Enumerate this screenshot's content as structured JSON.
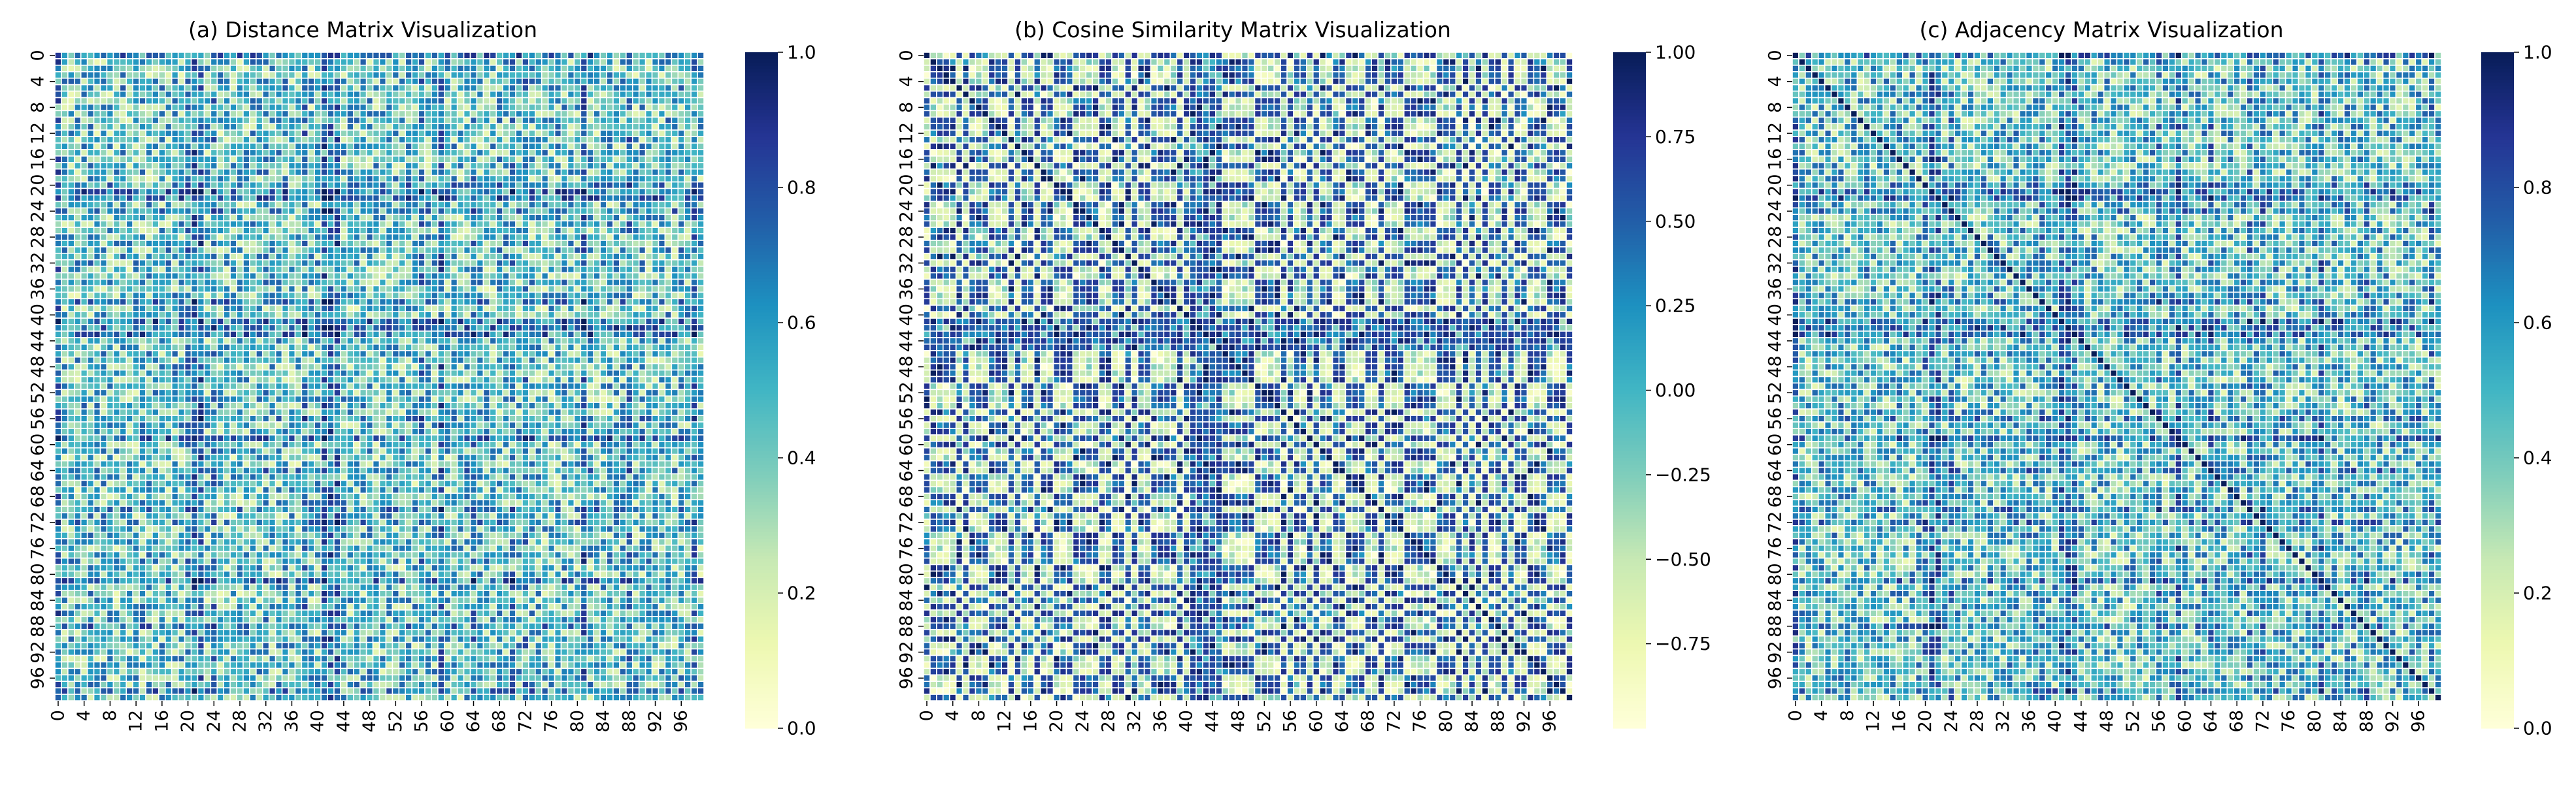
{
  "figure": {
    "background": "#ffffff",
    "gridline_color": "#ffffff",
    "colormap_name": "YlGnBu",
    "colormap": [
      "#ffffd9",
      "#edf8b1",
      "#c7e9b4",
      "#7fcdbb",
      "#41b6c4",
      "#1d91c0",
      "#225ea8",
      "#253494",
      "#081d58"
    ],
    "matrix_size": 100
  },
  "chart_data": [
    {
      "type": "heatmap",
      "title": "(a) Distance Matrix Visualization",
      "xlabel": "",
      "ylabel": "",
      "x_tick_labels": [
        "0",
        "4",
        "8",
        "12",
        "16",
        "20",
        "24",
        "28",
        "32",
        "36",
        "40",
        "44",
        "48",
        "52",
        "56",
        "60",
        "64",
        "68",
        "72",
        "76",
        "80",
        "84",
        "88",
        "92",
        "96"
      ],
      "y_tick_labels": [
        "0",
        "4",
        "8",
        "12",
        "16",
        "20",
        "24",
        "28",
        "32",
        "36",
        "40",
        "44",
        "48",
        "52",
        "56",
        "60",
        "64",
        "68",
        "72",
        "76",
        "80",
        "84",
        "88",
        "92",
        "96"
      ],
      "value_range": [
        0.0,
        1.0
      ],
      "colorbar_ticks": [
        "0.0",
        "0.2",
        "0.4",
        "0.6",
        "0.8",
        "1.0"
      ],
      "colorbar_tick_values": [
        0.0,
        0.2,
        0.4,
        0.6,
        0.8,
        1.0
      ],
      "pattern": "distance",
      "seed": 11,
      "dark_rows": [
        0,
        21,
        22,
        41,
        42,
        43,
        59,
        81
      ],
      "mid_rows": [
        20,
        24,
        38,
        56,
        64,
        70,
        72,
        88,
        98
      ]
    },
    {
      "type": "heatmap",
      "title": "(b) Cosine Similarity Matrix Visualization",
      "xlabel": "",
      "ylabel": "",
      "x_tick_labels": [
        "0",
        "4",
        "8",
        "12",
        "16",
        "20",
        "24",
        "28",
        "32",
        "36",
        "40",
        "44",
        "48",
        "52",
        "56",
        "60",
        "64",
        "68",
        "72",
        "76",
        "80",
        "84",
        "88",
        "92",
        "96"
      ],
      "y_tick_labels": [
        "0",
        "4",
        "8",
        "12",
        "16",
        "20",
        "24",
        "28",
        "32",
        "36",
        "40",
        "44",
        "48",
        "52",
        "56",
        "60",
        "64",
        "68",
        "72",
        "76",
        "80",
        "84",
        "88",
        "92",
        "96"
      ],
      "value_range": [
        -1.0,
        1.0
      ],
      "colorbar_ticks": [
        "1.00",
        "0.75",
        "0.50",
        "0.25",
        "0.00",
        "−0.25",
        "−0.50",
        "−0.75"
      ],
      "colorbar_tick_values": [
        1.0,
        0.75,
        0.5,
        0.25,
        0.0,
        -0.25,
        -0.5,
        -0.75
      ],
      "pattern": "cosine",
      "seed": 29,
      "dark_rows": [],
      "mid_rows": []
    },
    {
      "type": "heatmap",
      "title": "(c) Adjacency Matrix Visualization",
      "xlabel": "",
      "ylabel": "",
      "x_tick_labels": [
        "0",
        "4",
        "8",
        "12",
        "16",
        "20",
        "24",
        "28",
        "32",
        "36",
        "40",
        "44",
        "48",
        "52",
        "56",
        "60",
        "64",
        "68",
        "72",
        "76",
        "80",
        "84",
        "88",
        "92",
        "96"
      ],
      "y_tick_labels": [
        "0",
        "4",
        "8",
        "12",
        "16",
        "20",
        "24",
        "28",
        "32",
        "36",
        "40",
        "44",
        "48",
        "52",
        "56",
        "60",
        "64",
        "68",
        "72",
        "76",
        "80",
        "84",
        "88",
        "92",
        "96"
      ],
      "value_range": [
        0.0,
        1.0
      ],
      "colorbar_ticks": [
        "0.0",
        "0.2",
        "0.4",
        "0.6",
        "0.8",
        "1.0"
      ],
      "colorbar_tick_values": [
        0.0,
        0.2,
        0.4,
        0.6,
        0.8,
        1.0
      ],
      "pattern": "adjacency",
      "seed": 47,
      "dark_rows": [
        0,
        21,
        22,
        41,
        42,
        43,
        59,
        81
      ],
      "mid_rows": [
        20,
        24,
        38,
        56,
        64,
        70,
        72,
        88,
        98
      ]
    }
  ]
}
